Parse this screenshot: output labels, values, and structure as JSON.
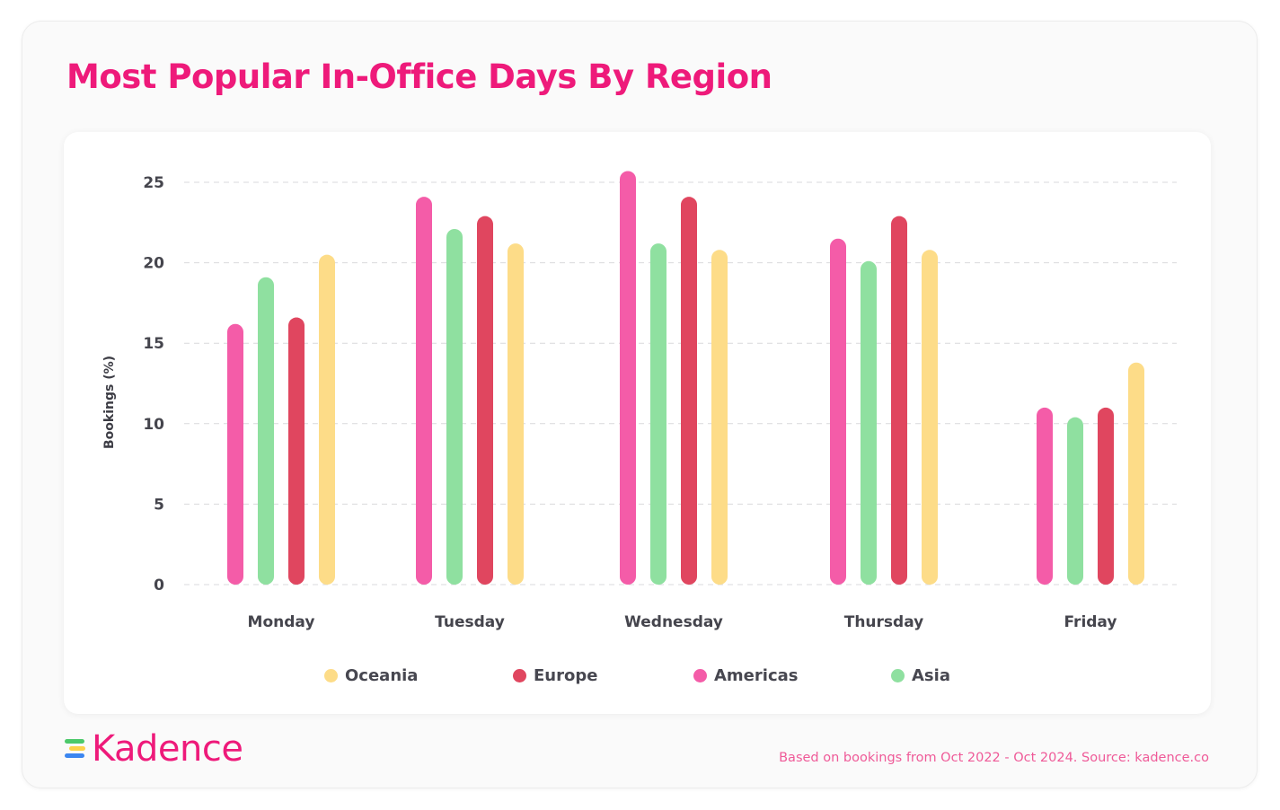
{
  "title": "Most Popular In-Office Days By Region",
  "chart_data": {
    "type": "bar",
    "title": "Most Popular In-Office Days By Region",
    "xlabel": "",
    "ylabel": "Bookings (%)",
    "ylim": [
      0,
      25
    ],
    "yticks": [
      0,
      5,
      10,
      15,
      20,
      25
    ],
    "grid": true,
    "legend_position": "bottom",
    "categories": [
      "Monday",
      "Tuesday",
      "Wednesday",
      "Thursday",
      "Friday"
    ],
    "series": [
      {
        "name": "Americas",
        "color": "#f45ca8",
        "values": [
          16.2,
          24.1,
          25.7,
          21.5,
          11.0
        ]
      },
      {
        "name": "Asia",
        "color": "#8fe0a0",
        "values": [
          19.1,
          22.1,
          21.2,
          20.1,
          10.4
        ]
      },
      {
        "name": "Europe",
        "color": "#e0465f",
        "values": [
          16.6,
          22.9,
          24.1,
          22.9,
          11.0
        ]
      },
      {
        "name": "Oceania",
        "color": "#fddc88",
        "values": [
          20.5,
          21.2,
          20.8,
          20.8,
          13.8
        ]
      }
    ],
    "legend_order": [
      "Oceania",
      "Europe",
      "Americas",
      "Asia"
    ]
  },
  "logo": {
    "text": "Kadence",
    "mark_label": "KADENCE"
  },
  "footnote": "Based on bookings from Oct 2022 - Oct 2024. Source: kadence.co",
  "colors": {
    "brand": "#ee1a7a",
    "Americas": "#f45ca8",
    "Asia": "#8fe0a0",
    "Europe": "#e0465f",
    "Oceania": "#fddc88",
    "logo_green": "#4cc96a",
    "logo_yellow": "#fdd24a",
    "logo_blue": "#3b86f0"
  }
}
